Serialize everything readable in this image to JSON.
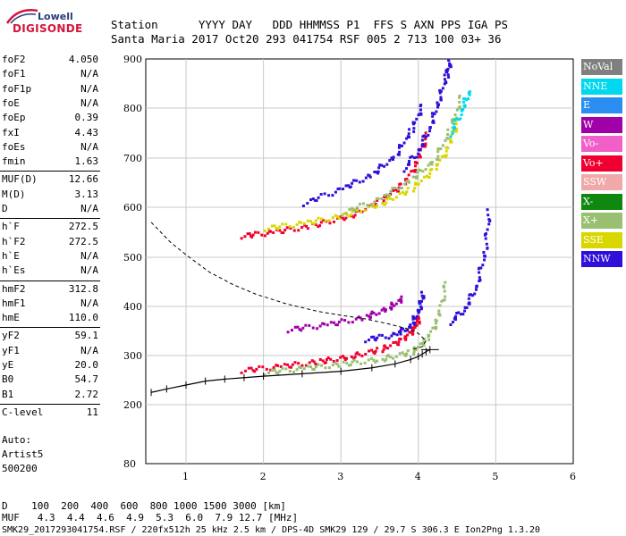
{
  "logo": {
    "top": "Lowell",
    "main": "DIGISONDE"
  },
  "header": {
    "row1": "Station      YYYY DAY   DDD HHMMSS P1  FFS S AXN PPS IGA PS",
    "row2": "Santa Maria 2017 Oct20 293 041754 RSF 005 2 713 100 03+ 36"
  },
  "params": [
    {
      "k": "foF2",
      "v": "4.050"
    },
    {
      "k": "foF1",
      "v": "N/A"
    },
    {
      "k": "foF1p",
      "v": "N/A"
    },
    {
      "k": "foE",
      "v": "N/A"
    },
    {
      "k": "foEp",
      "v": "0.39"
    },
    {
      "k": "fxI",
      "v": "4.43"
    },
    {
      "k": "foEs",
      "v": "N/A"
    },
    {
      "k": "fmin",
      "v": "1.63"
    },
    {
      "k": "MUF(D)",
      "v": "12.66"
    },
    {
      "k": "M(D)",
      "v": "3.13"
    },
    {
      "k": "D",
      "v": "N/A"
    },
    {
      "k": "h`F",
      "v": "272.5"
    },
    {
      "k": "h`F2",
      "v": "272.5"
    },
    {
      "k": "h`E",
      "v": "N/A"
    },
    {
      "k": "h`Es",
      "v": "N/A"
    },
    {
      "k": "hmF2",
      "v": "312.8"
    },
    {
      "k": "hmF1",
      "v": "N/A"
    },
    {
      "k": "hmE",
      "v": "110.0"
    },
    {
      "k": "yF2",
      "v": "59.1"
    },
    {
      "k": "yF1",
      "v": "N/A"
    },
    {
      "k": "yE",
      "v": "20.0"
    },
    {
      "k": "B0",
      "v": "54.7"
    },
    {
      "k": "B1",
      "v": "2.72"
    },
    {
      "k": "C-level",
      "v": "11"
    }
  ],
  "auto": {
    "line1": "Auto:",
    "line2": "Artist5",
    "line3": "500200"
  },
  "legend": [
    {
      "label": "NoVal",
      "color": "#808080"
    },
    {
      "label": "NNE",
      "color": "#00d8f0"
    },
    {
      "label": "E",
      "color": "#2a8ef0"
    },
    {
      "label": "W",
      "color": "#a000a8"
    },
    {
      "label": "Vo-",
      "color": "#f060c8"
    },
    {
      "label": "Vo+",
      "color": "#f00030"
    },
    {
      "label": "SSW",
      "color": "#f0a8a8"
    },
    {
      "label": "X-",
      "color": "#108810"
    },
    {
      "label": "X+",
      "color": "#98c070"
    },
    {
      "label": "SSE",
      "color": "#d8d800"
    },
    {
      "label": "NNW",
      "color": "#3010d8"
    }
  ],
  "footer": {
    "row1": "D    100  200  400  600  800 1000 1500 3000 [km]",
    "row2": "MUF   4.3  4.4  4.6  4.9  5.3  6.0  7.9 12.7 [MHz]",
    "row3": "SMK29_2017293041754.RSF / 220fx512h 25 kHz 2.5 km / DPS-4D SMK29 129 / 29.7 S 306.3 E Ion2Png 1.3.20"
  },
  "chart_data": {
    "type": "scatter",
    "xlim": [
      0.55,
      6.05
    ],
    "ylim": [
      80,
      900
    ],
    "xticks": [
      1,
      2,
      3,
      4,
      5,
      6
    ],
    "yticks": [
      80,
      200,
      300,
      400,
      500,
      600,
      700,
      800,
      900
    ],
    "grid": true,
    "profile": {
      "x": [
        0.55,
        0.75,
        1.0,
        1.25,
        1.5,
        1.75,
        2.0,
        2.5,
        3.0,
        3.4,
        3.7,
        3.9,
        4.0,
        4.05,
        4.1,
        4.15
      ],
      "y": [
        225,
        232,
        240,
        248,
        252,
        255,
        258,
        263,
        268,
        275,
        283,
        292,
        298,
        303,
        308,
        312
      ]
    },
    "dashed_curve": {
      "x": [
        0.55,
        0.8,
        1.0,
        1.3,
        1.6,
        1.9,
        2.3,
        2.7,
        3.0,
        3.3,
        3.6,
        3.85,
        4.0,
        4.1,
        4.05,
        3.9
      ],
      "y": [
        570,
        530,
        505,
        470,
        445,
        425,
        405,
        390,
        382,
        375,
        365,
        355,
        345,
        330,
        318,
        312
      ]
    },
    "traces": [
      {
        "name": "Vo+",
        "color": "#f00030",
        "x": [
          1.7,
          2.2,
          2.7,
          3.1,
          3.5,
          3.8,
          3.95,
          4.0
        ],
        "y": [
          272,
          280,
          290,
          300,
          315,
          335,
          360,
          385
        ]
      },
      {
        "name": "X+",
        "color": "#98c070",
        "x": [
          2.0,
          2.5,
          3.0,
          3.5,
          3.9,
          4.1,
          4.25,
          4.35
        ],
        "y": [
          268,
          276,
          285,
          295,
          310,
          335,
          380,
          460
        ]
      },
      {
        "name": "NNW",
        "color": "#3010d8",
        "x": [
          3.3,
          3.7,
          3.9,
          4.0,
          4.05
        ],
        "y": [
          335,
          345,
          365,
          400,
          430
        ]
      },
      {
        "name": "W",
        "color": "#a000a8",
        "x": [
          2.3,
          2.8,
          3.3,
          3.6,
          3.8
        ],
        "y": [
          355,
          365,
          380,
          400,
          420
        ]
      },
      {
        "name": "Vo+",
        "color": "#f00030",
        "x": [
          1.7,
          2.1,
          2.6,
          3.1,
          3.5,
          3.8,
          4.0,
          4.1
        ],
        "y": [
          545,
          552,
          565,
          585,
          615,
          650,
          700,
          760
        ]
      },
      {
        "name": "SSE",
        "color": "#d8d800",
        "x": [
          2.0,
          2.5,
          3.0,
          3.5,
          3.9,
          4.2,
          4.4,
          4.5
        ],
        "y": [
          560,
          570,
          585,
          610,
          640,
          680,
          730,
          790
        ]
      },
      {
        "name": "NNW",
        "color": "#3010d8",
        "x": [
          3.8,
          4.0,
          4.15,
          4.25,
          4.35,
          4.4
        ],
        "y": [
          680,
          720,
          770,
          820,
          870,
          900
        ]
      },
      {
        "name": "X+",
        "color": "#98c070",
        "x": [
          3.0,
          3.5,
          3.9,
          4.2,
          4.4,
          4.55
        ],
        "y": [
          590,
          620,
          660,
          700,
          760,
          830
        ]
      },
      {
        "name": "NNW",
        "color": "#3010d8",
        "x": [
          2.5,
          3.0,
          3.4,
          3.7,
          3.9,
          4.05
        ],
        "y": [
          610,
          640,
          670,
          710,
          760,
          810
        ]
      },
      {
        "name": "NNE",
        "color": "#00d8f0",
        "x": [
          4.4,
          4.55,
          4.65
        ],
        "y": [
          750,
          800,
          840
        ]
      },
      {
        "name": "NNW",
        "color": "#3010d8",
        "x": [
          4.4,
          4.6,
          4.75,
          4.85,
          4.9
        ],
        "y": [
          370,
          400,
          450,
          520,
          600
        ]
      }
    ]
  }
}
